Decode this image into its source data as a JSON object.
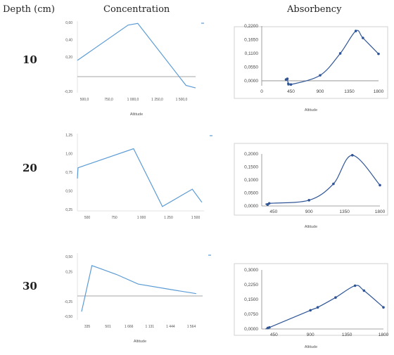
{
  "headers": {
    "depth": "Depth (cm)",
    "concentration": "Concentration",
    "absorbency": "Absorbency"
  },
  "rows": [
    {
      "depth": "10",
      "concentration": {
        "type": "line",
        "xlabel": "Altitude",
        "x_ticks": [
          "500,0",
          "750,0",
          "1 000,0",
          "1 250,0",
          "1 500,0"
        ],
        "y_ticks": [
          "0,60",
          "0,40",
          "0,20",
          "",
          "-0,20"
        ],
        "x": [
          374,
          900,
          1000,
          1500,
          1600
        ],
        "y": [
          0.16,
          0.57,
          0.59,
          -0.13,
          -0.16
        ],
        "xlim": [
          374,
          1600
        ],
        "ylim": [
          -0.2,
          0.6
        ]
      },
      "absorbency": {
        "type": "line",
        "xlabel": "Altitude",
        "x_ticks": [
          "0",
          "450",
          "900",
          "1350",
          "1800"
        ],
        "y_ticks": [
          "0,0000",
          "0,0550",
          "0,1100",
          "0,1650",
          "0,2200"
        ],
        "x": [
          374,
          395,
          410,
          450,
          900,
          1210,
          1450,
          1560,
          1800
        ],
        "y": [
          0.005,
          0.008,
          -0.012,
          -0.015,
          0.022,
          0.11,
          0.2,
          0.172,
          0.108
        ],
        "xlim": [
          0,
          1800
        ],
        "ylim": [
          -0.02,
          0.22
        ]
      }
    },
    {
      "depth": "20",
      "concentration": {
        "type": "line",
        "xlabel": "",
        "x_ticks": [
          "500",
          "750",
          "1 000",
          "1 250",
          "1 500"
        ],
        "y_ticks": [
          "1,25",
          "1,00",
          "0,75",
          "0,50",
          "0,25"
        ],
        "x": [
          374,
          380,
          900,
          1170,
          1450,
          1540
        ],
        "y": [
          0.52,
          0.7,
          1.02,
          0.05,
          0.34,
          0.12
        ],
        "xlim": [
          374,
          1560
        ],
        "ylim": [
          0,
          1.25
        ]
      },
      "absorbency": {
        "type": "line",
        "xlabel": "Altitude",
        "x_ticks": [
          "450",
          "900",
          "1350",
          "1800"
        ],
        "y_ticks": [
          "0,0000",
          "0,0500",
          "0,1000",
          "0,1500",
          "0,2000"
        ],
        "x": [
          374,
          395,
          900,
          1210,
          1450,
          1800
        ],
        "y": [
          0.005,
          0.01,
          0.022,
          0.085,
          0.195,
          0.08
        ],
        "xlim": [
          300,
          1800
        ],
        "ylim": [
          0,
          0.2
        ]
      }
    },
    {
      "depth": "30",
      "concentration": {
        "type": "line",
        "xlabel": "Altitude",
        "x_ticks": [
          "335",
          "501",
          "1 666",
          "1 131",
          "1 444",
          "1 564"
        ],
        "y_ticks": [
          "0,50",
          "0,25",
          "",
          "-0,25",
          "-0,50"
        ],
        "x": [
          374,
          470,
          700,
          900,
          1200,
          1440
        ],
        "y": [
          -0.42,
          0.35,
          0.2,
          0.04,
          -0.05,
          -0.12
        ],
        "xlim": [
          335,
          1500
        ],
        "ylim": [
          -0.5,
          0.5
        ]
      },
      "absorbency": {
        "type": "line",
        "xlabel": "Altitude",
        "x_ticks": [
          "450",
          "900",
          "1350",
          "1800"
        ],
        "y_ticks": [
          "0,0000",
          "0,0750",
          "0,1500",
          "0,2250",
          "0,3000"
        ],
        "x": [
          374,
          395,
          900,
          990,
          1210,
          1450,
          1560,
          1800
        ],
        "y": [
          0.005,
          0.008,
          0.095,
          0.11,
          0.16,
          0.22,
          0.195,
          0.11
        ],
        "xlim": [
          300,
          1800
        ],
        "ylim": [
          0,
          0.3
        ]
      }
    }
  ],
  "chart_data": [
    {
      "type": "line",
      "title": "",
      "xlabel": "Altitude",
      "x": [
        374,
        900,
        1000,
        1500,
        1600
      ],
      "series": [
        {
          "values": [
            0.16,
            0.57,
            0.59,
            -0.13,
            -0.16
          ]
        }
      ]
    },
    {
      "type": "line",
      "title": "",
      "xlabel": "Altitude",
      "x": [
        374,
        395,
        410,
        450,
        900,
        1210,
        1450,
        1560,
        1800
      ],
      "series": [
        {
          "values": [
            0.005,
            0.008,
            -0.012,
            -0.015,
            0.022,
            0.11,
            0.2,
            0.172,
            0.108
          ]
        }
      ]
    },
    {
      "type": "line",
      "title": "",
      "xlabel": "",
      "x": [
        374,
        380,
        900,
        1170,
        1450,
        1540
      ],
      "series": [
        {
          "values": [
            0.52,
            0.7,
            1.02,
            0.05,
            0.34,
            0.12
          ]
        }
      ]
    },
    {
      "type": "line",
      "title": "",
      "xlabel": "Altitude",
      "x": [
        374,
        395,
        900,
        1210,
        1450,
        1800
      ],
      "series": [
        {
          "values": [
            0.005,
            0.01,
            0.022,
            0.085,
            0.195,
            0.08
          ]
        }
      ]
    },
    {
      "type": "line",
      "title": "",
      "xlabel": "Altitude",
      "x": [
        374,
        470,
        700,
        900,
        1200,
        1440
      ],
      "series": [
        {
          "values": [
            -0.42,
            0.35,
            0.2,
            0.04,
            -0.05,
            -0.12
          ]
        }
      ]
    },
    {
      "type": "line",
      "title": "",
      "xlabel": "Altitude",
      "x": [
        374,
        395,
        900,
        990,
        1210,
        1450,
        1560,
        1800
      ],
      "series": [
        {
          "values": [
            0.005,
            0.008,
            0.095,
            0.11,
            0.16,
            0.22,
            0.195,
            0.11
          ]
        }
      ]
    }
  ],
  "colors": {
    "concentration_line": "#5b9bd5",
    "absorbency_line": "#2f5597",
    "frame": "#d0d0d0",
    "zero_line": "#888888"
  }
}
